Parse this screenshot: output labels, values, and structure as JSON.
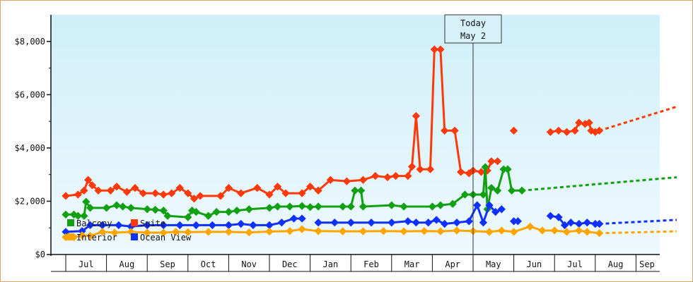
{
  "chart_data": {
    "type": "line",
    "title": "",
    "xlabel": "",
    "ylabel": "",
    "ylim": [
      0,
      9000
    ],
    "y_ticks": [
      "$0",
      "$2,000",
      "$4,000",
      "$6,000",
      "$8,000"
    ],
    "y_tick_values": [
      0,
      2000,
      4000,
      6000,
      8000
    ],
    "x_ticks": [
      "Jul",
      "Aug",
      "Sep",
      "Oct",
      "Nov",
      "Dec",
      "Jan",
      "Feb",
      "Mar",
      "Apr",
      "May",
      "Jun",
      "Jul",
      "Aug",
      "Sep"
    ],
    "today_marker": {
      "line1": "Today",
      "line2": "May 2"
    },
    "legend_position": "bottom-left",
    "grid": false,
    "background": "light-blue gradient",
    "series": [
      {
        "name": "Balcony",
        "color": "#11a011",
        "points": [
          [
            0,
            1500
          ],
          [
            0.2,
            1500
          ],
          [
            0.3,
            1450
          ],
          [
            0.45,
            1450
          ],
          [
            0.5,
            1980
          ],
          [
            0.6,
            1750
          ],
          [
            1.0,
            1750
          ],
          [
            1.25,
            1850
          ],
          [
            1.4,
            1800
          ],
          [
            1.6,
            1750
          ],
          [
            2.0,
            1700
          ],
          [
            2.2,
            1680
          ],
          [
            2.4,
            1650
          ],
          [
            2.5,
            1450
          ],
          [
            3.0,
            1400
          ],
          [
            3.1,
            1650
          ],
          [
            3.2,
            1600
          ],
          [
            3.5,
            1450
          ],
          [
            3.7,
            1600
          ],
          [
            4.0,
            1600
          ],
          [
            4.2,
            1650
          ],
          [
            4.5,
            1700
          ],
          [
            5.0,
            1750
          ],
          [
            5.2,
            1800
          ],
          [
            5.5,
            1800
          ],
          [
            5.8,
            1820
          ],
          [
            6.0,
            1780
          ],
          [
            6.2,
            1800
          ],
          [
            6.8,
            1800
          ],
          [
            7.0,
            1800
          ],
          [
            7.1,
            2400
          ],
          [
            7.25,
            2400
          ],
          [
            7.3,
            1800
          ],
          [
            8.0,
            1850
          ],
          [
            8.3,
            1800
          ],
          [
            9.0,
            1800
          ],
          [
            9.2,
            1850
          ],
          [
            9.5,
            1900
          ],
          [
            9.8,
            2250
          ],
          [
            10.0,
            2250
          ],
          [
            10.25,
            2250
          ],
          [
            10.3,
            3280
          ],
          [
            10.35,
            1700
          ],
          [
            10.45,
            2500
          ],
          [
            10.6,
            2400
          ],
          [
            10.75,
            3200
          ],
          [
            10.85,
            3200
          ],
          [
            10.95,
            2400
          ],
          [
            11.2,
            2400
          ]
        ],
        "forecast": [
          [
            11.2,
            2400
          ],
          [
            15.0,
            2900
          ]
        ]
      },
      {
        "name": "Suite",
        "color": "#ff3a0a",
        "points": [
          [
            0,
            2200
          ],
          [
            0.3,
            2250
          ],
          [
            0.45,
            2400
          ],
          [
            0.55,
            2800
          ],
          [
            0.65,
            2600
          ],
          [
            0.8,
            2400
          ],
          [
            1.1,
            2400
          ],
          [
            1.25,
            2550
          ],
          [
            1.5,
            2350
          ],
          [
            1.7,
            2500
          ],
          [
            1.9,
            2300
          ],
          [
            2.2,
            2300
          ],
          [
            2.4,
            2250
          ],
          [
            2.6,
            2300
          ],
          [
            2.8,
            2500
          ],
          [
            3.0,
            2300
          ],
          [
            3.15,
            2100
          ],
          [
            3.3,
            2200
          ],
          [
            3.8,
            2200
          ],
          [
            4.0,
            2500
          ],
          [
            4.3,
            2300
          ],
          [
            4.7,
            2500
          ],
          [
            5.0,
            2250
          ],
          [
            5.2,
            2550
          ],
          [
            5.4,
            2300
          ],
          [
            5.8,
            2300
          ],
          [
            6.0,
            2550
          ],
          [
            6.2,
            2400
          ],
          [
            6.5,
            2800
          ],
          [
            6.9,
            2750
          ],
          [
            7.3,
            2800
          ],
          [
            7.6,
            2950
          ],
          [
            7.9,
            2900
          ],
          [
            8.1,
            2950
          ],
          [
            8.4,
            2950
          ],
          [
            8.5,
            3300
          ],
          [
            8.6,
            5200
          ],
          [
            8.7,
            3200
          ],
          [
            8.95,
            3200
          ],
          [
            9.05,
            7700
          ],
          [
            9.2,
            7700
          ],
          [
            9.3,
            4650
          ],
          [
            9.55,
            4650
          ],
          [
            9.7,
            3100
          ],
          [
            9.9,
            3050
          ],
          [
            10.0,
            3150
          ],
          [
            10.2,
            3100
          ],
          [
            10.35,
            3150
          ],
          [
            10.45,
            3500
          ],
          [
            10.6,
            3500
          ]
        ],
        "points_2": [
          [
            11.0,
            4650
          ]
        ],
        "points_3": [
          [
            11.9,
            4600
          ],
          [
            12.1,
            4650
          ],
          [
            12.3,
            4600
          ],
          [
            12.5,
            4650
          ],
          [
            12.6,
            4950
          ],
          [
            12.75,
            4900
          ],
          [
            12.85,
            4950
          ],
          [
            12.9,
            4650
          ],
          [
            13.0,
            4600
          ],
          [
            13.1,
            4650
          ]
        ],
        "forecast": [
          [
            13.1,
            4650
          ],
          [
            15.0,
            5550
          ]
        ]
      },
      {
        "name": "Interior",
        "color": "#ffa500",
        "points": [
          [
            0,
            650
          ],
          [
            0.2,
            650
          ],
          [
            0.4,
            720
          ],
          [
            0.6,
            700
          ],
          [
            0.9,
            850
          ],
          [
            1.2,
            820
          ],
          [
            1.6,
            850
          ],
          [
            2.0,
            820
          ],
          [
            2.4,
            820
          ],
          [
            2.7,
            850
          ],
          [
            3.0,
            840
          ],
          [
            3.5,
            850
          ],
          [
            4.0,
            850
          ],
          [
            4.5,
            830
          ],
          [
            5.0,
            860
          ],
          [
            5.5,
            880
          ],
          [
            5.8,
            950
          ],
          [
            6.2,
            880
          ],
          [
            6.8,
            870
          ],
          [
            7.3,
            870
          ],
          [
            7.8,
            880
          ],
          [
            8.3,
            870
          ],
          [
            8.8,
            880
          ],
          [
            9.2,
            870
          ],
          [
            9.6,
            900
          ],
          [
            10.0,
            880
          ],
          [
            10.4,
            850
          ],
          [
            10.7,
            900
          ],
          [
            11.0,
            850
          ],
          [
            11.4,
            1050
          ],
          [
            11.7,
            900
          ],
          [
            12.0,
            900
          ],
          [
            12.3,
            850
          ],
          [
            12.6,
            900
          ],
          [
            12.8,
            850
          ],
          [
            13.1,
            800
          ]
        ],
        "forecast": [
          [
            13.1,
            800
          ],
          [
            15.0,
            870
          ]
        ]
      },
      {
        "name": "Ocean View",
        "color": "#1030ff",
        "points": [
          [
            0,
            850
          ],
          [
            0.4,
            880
          ],
          [
            0.6,
            1100
          ],
          [
            0.9,
            1100
          ],
          [
            1.3,
            1100
          ],
          [
            1.6,
            1050
          ],
          [
            2.0,
            1100
          ],
          [
            2.4,
            1100
          ],
          [
            2.8,
            1100
          ],
          [
            3.2,
            1100
          ],
          [
            3.6,
            1100
          ],
          [
            4.0,
            1100
          ],
          [
            4.3,
            1150
          ],
          [
            4.6,
            1100
          ],
          [
            5.0,
            1100
          ],
          [
            5.3,
            1200
          ],
          [
            5.6,
            1350
          ],
          [
            5.8,
            1350
          ]
        ],
        "points_2": [
          [
            6.2,
            1200
          ],
          [
            6.6,
            1200
          ],
          [
            7.0,
            1200
          ],
          [
            7.5,
            1200
          ],
          [
            8.0,
            1200
          ],
          [
            8.4,
            1250
          ],
          [
            8.6,
            1200
          ],
          [
            8.9,
            1200
          ],
          [
            9.1,
            1300
          ],
          [
            9.3,
            1150
          ],
          [
            9.6,
            1200
          ],
          [
            9.9,
            1250
          ],
          [
            10.1,
            1850
          ],
          [
            10.25,
            1200
          ],
          [
            10.4,
            1850
          ],
          [
            10.55,
            1600
          ],
          [
            10.7,
            1700
          ]
        ],
        "points_3": [
          [
            11.0,
            1250
          ],
          [
            11.1,
            1250
          ]
        ],
        "points_4": [
          [
            11.9,
            1450
          ],
          [
            12.1,
            1400
          ],
          [
            12.25,
            1100
          ],
          [
            12.4,
            1200
          ],
          [
            12.6,
            1150
          ],
          [
            12.8,
            1200
          ],
          [
            13.0,
            1150
          ],
          [
            13.1,
            1150
          ]
        ],
        "forecast": [
          [
            13.1,
            1150
          ],
          [
            15.0,
            1300
          ]
        ]
      }
    ]
  }
}
